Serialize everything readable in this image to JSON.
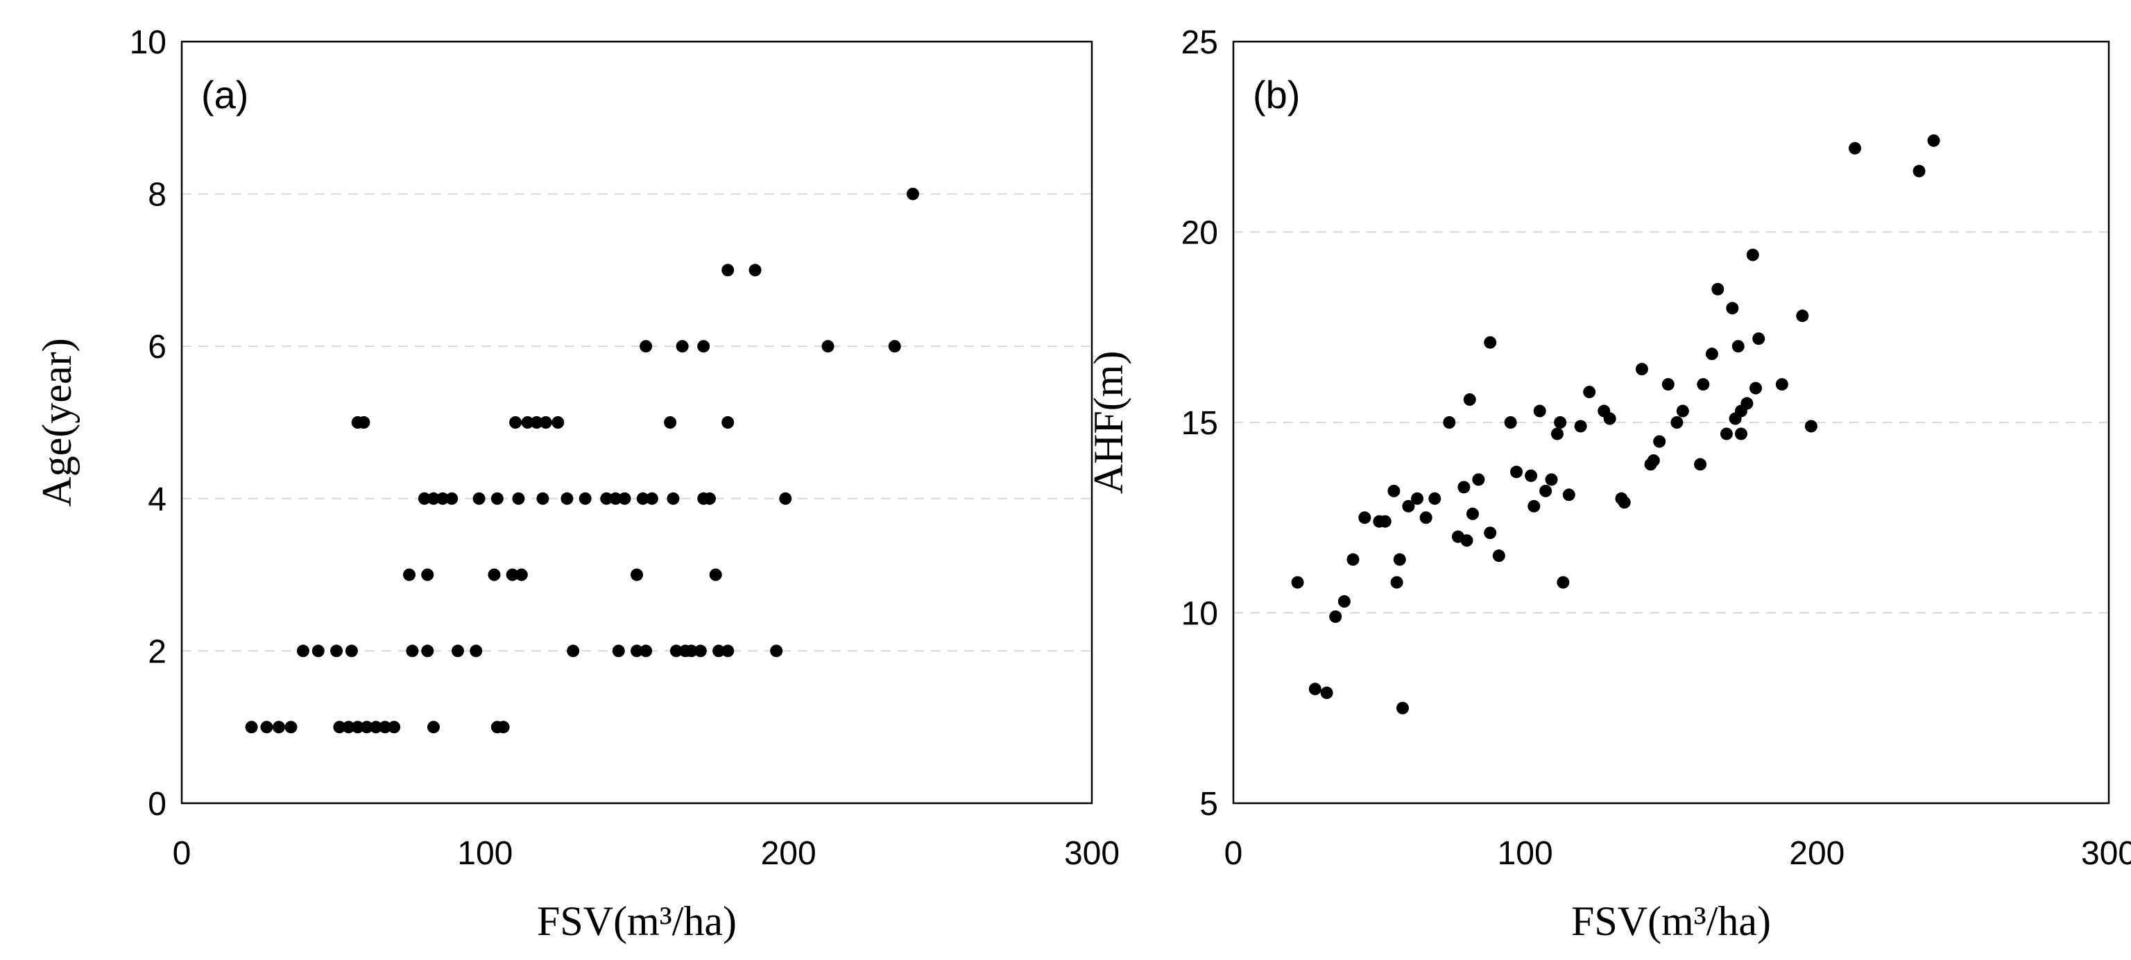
{
  "chart_data": [
    {
      "type": "scatter",
      "panel_label": "(a)",
      "xlabel": "FSV(m³/ha)",
      "ylabel": "Age(year)",
      "xlim": [
        0,
        300
      ],
      "ylim": [
        0,
        10
      ],
      "xticks": [
        0,
        100,
        200,
        300
      ],
      "yticks": [
        0,
        2,
        4,
        6,
        8,
        10
      ],
      "x_tick_labels": [
        "0",
        "100",
        "200",
        "300"
      ],
      "y_tick_labels": [
        "0",
        "2",
        "4",
        "6",
        "8",
        "10"
      ],
      "grid": "horizontal dashed",
      "legend": "none",
      "points": [
        [
          23,
          1
        ],
        [
          28,
          1
        ],
        [
          32,
          1
        ],
        [
          36,
          1
        ],
        [
          52,
          1
        ],
        [
          55,
          1
        ],
        [
          58,
          1
        ],
        [
          61,
          1
        ],
        [
          64,
          1
        ],
        [
          67,
          1
        ],
        [
          70,
          1
        ],
        [
          83,
          1
        ],
        [
          104,
          1
        ],
        [
          106,
          1
        ],
        [
          40,
          2
        ],
        [
          45,
          2
        ],
        [
          51,
          2
        ],
        [
          56,
          2
        ],
        [
          76,
          2
        ],
        [
          81,
          2
        ],
        [
          91,
          2
        ],
        [
          97,
          2
        ],
        [
          129,
          2
        ],
        [
          144,
          2
        ],
        [
          150,
          2
        ],
        [
          153,
          2
        ],
        [
          163,
          2
        ],
        [
          166,
          2
        ],
        [
          168,
          2
        ],
        [
          171,
          2
        ],
        [
          177,
          2
        ],
        [
          180,
          2
        ],
        [
          196,
          2
        ],
        [
          75,
          3
        ],
        [
          81,
          3
        ],
        [
          103,
          3
        ],
        [
          109,
          3
        ],
        [
          112,
          3
        ],
        [
          150,
          3
        ],
        [
          176,
          3
        ],
        [
          80,
          4
        ],
        [
          83,
          4
        ],
        [
          86,
          4
        ],
        [
          89,
          4
        ],
        [
          98,
          4
        ],
        [
          104,
          4
        ],
        [
          111,
          4
        ],
        [
          119,
          4
        ],
        [
          127,
          4
        ],
        [
          133,
          4
        ],
        [
          140,
          4
        ],
        [
          143,
          4
        ],
        [
          146,
          4
        ],
        [
          152,
          4
        ],
        [
          155,
          4
        ],
        [
          162,
          4
        ],
        [
          172,
          4
        ],
        [
          174,
          4
        ],
        [
          199,
          4
        ],
        [
          58,
          5
        ],
        [
          60,
          5
        ],
        [
          110,
          5
        ],
        [
          114,
          5
        ],
        [
          117,
          5
        ],
        [
          120,
          5
        ],
        [
          124,
          5
        ],
        [
          161,
          5
        ],
        [
          180,
          5
        ],
        [
          153,
          6
        ],
        [
          165,
          6
        ],
        [
          172,
          6
        ],
        [
          213,
          6
        ],
        [
          235,
          6
        ],
        [
          180,
          7
        ],
        [
          189,
          7
        ],
        [
          241,
          8
        ]
      ]
    },
    {
      "type": "scatter",
      "panel_label": "(b)",
      "xlabel": "FSV(m³/ha)",
      "ylabel": "AHF(m)",
      "xlim": [
        0,
        300
      ],
      "ylim": [
        5,
        25
      ],
      "xticks": [
        0,
        100,
        200,
        300
      ],
      "yticks": [
        5,
        10,
        15,
        20,
        25
      ],
      "x_tick_labels": [
        "0",
        "100",
        "200",
        "300"
      ],
      "y_tick_labels": [
        "5",
        "10",
        "15",
        "20",
        "25"
      ],
      "grid": "horizontal dashed",
      "legend": "none",
      "points": [
        [
          22,
          10.8
        ],
        [
          28,
          8
        ],
        [
          32,
          7.9
        ],
        [
          35,
          9.9
        ],
        [
          38,
          10.3
        ],
        [
          41,
          11.4
        ],
        [
          45,
          12.5
        ],
        [
          50,
          12.4
        ],
        [
          52,
          12.4
        ],
        [
          55,
          13.2
        ],
        [
          56,
          10.8
        ],
        [
          57,
          11.4
        ],
        [
          58,
          7.5
        ],
        [
          60,
          12.8
        ],
        [
          63,
          13
        ],
        [
          66,
          12.5
        ],
        [
          69,
          13
        ],
        [
          74,
          15
        ],
        [
          77,
          12
        ],
        [
          79,
          13.3
        ],
        [
          80,
          11.9
        ],
        [
          81,
          15.6
        ],
        [
          82,
          12.6
        ],
        [
          84,
          13.5
        ],
        [
          88,
          12.1
        ],
        [
          88,
          17.1
        ],
        [
          91,
          11.5
        ],
        [
          95,
          15
        ],
        [
          97,
          13.7
        ],
        [
          102,
          13.6
        ],
        [
          103,
          12.8
        ],
        [
          105,
          15.3
        ],
        [
          107,
          13.2
        ],
        [
          109,
          13.5
        ],
        [
          111,
          14.7
        ],
        [
          112,
          15
        ],
        [
          113,
          10.8
        ],
        [
          115,
          13.1
        ],
        [
          119,
          14.9
        ],
        [
          122,
          15.8
        ],
        [
          127,
          15.3
        ],
        [
          129,
          15.1
        ],
        [
          133,
          13
        ],
        [
          134,
          12.9
        ],
        [
          140,
          16.4
        ],
        [
          143,
          13.9
        ],
        [
          144,
          14
        ],
        [
          146,
          14.5
        ],
        [
          149,
          16
        ],
        [
          152,
          15
        ],
        [
          154,
          15.3
        ],
        [
          160,
          13.9
        ],
        [
          161,
          16
        ],
        [
          164,
          16.8
        ],
        [
          166,
          18.5
        ],
        [
          169,
          14.7
        ],
        [
          171,
          18
        ],
        [
          172,
          15.1
        ],
        [
          173,
          17
        ],
        [
          174,
          15.3
        ],
        [
          174,
          14.7
        ],
        [
          176,
          15.5
        ],
        [
          178,
          19.4
        ],
        [
          179,
          15.9
        ],
        [
          180,
          17.2
        ],
        [
          188,
          16
        ],
        [
          195,
          17.8
        ],
        [
          198,
          14.9
        ],
        [
          213,
          22.2
        ],
        [
          235,
          21.6
        ],
        [
          240,
          22.4
        ]
      ]
    }
  ]
}
